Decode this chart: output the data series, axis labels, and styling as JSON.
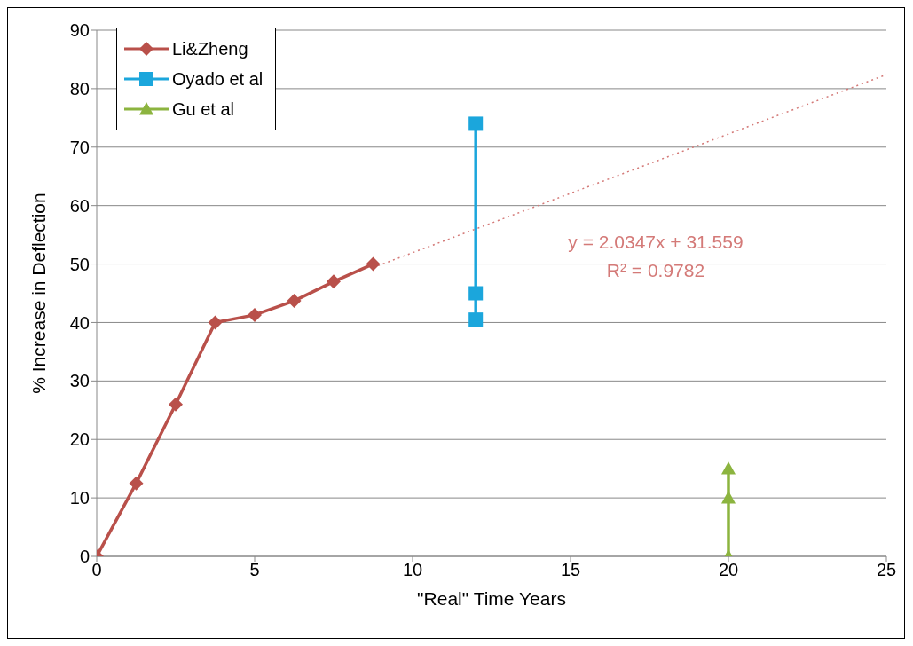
{
  "chart_data": {
    "type": "line",
    "xlabel": "\"Real\" Time Years",
    "ylabel": "% Increase in Deflection",
    "xlim": [
      0,
      25
    ],
    "xticks": [
      0,
      5,
      10,
      15,
      20,
      25
    ],
    "ylim": [
      0,
      90
    ],
    "yticks": [
      0,
      10,
      20,
      30,
      40,
      50,
      60,
      70,
      80,
      90
    ],
    "grid": "y",
    "legend": "top left",
    "series": [
      {
        "name": "Li&Zheng",
        "color": "#b9504a",
        "marker": "diamond",
        "x": [
          0,
          1.25,
          2.5,
          3.75,
          5,
          6.25,
          7.5,
          8.75
        ],
        "values": [
          0,
          12.5,
          26,
          40,
          41.3,
          43.7,
          47,
          50
        ]
      },
      {
        "name": "Oyado et al",
        "color": "#1ba6dc",
        "marker": "square",
        "x": [
          12,
          12,
          12
        ],
        "values": [
          74,
          45,
          40.5
        ]
      },
      {
        "name": "Gu et al",
        "color": "#8cb43f",
        "marker": "triangle",
        "x": [
          20,
          20,
          20
        ],
        "values": [
          15,
          10,
          0
        ]
      },
      {
        "color": "#d47a78",
        "marker": "none",
        "line_style": "dotted",
        "x": [
          8.75,
          25
        ],
        "values": [
          49.4,
          82.4
        ]
      }
    ],
    "annotations": [
      "y = 2.0347x + 31.559",
      "R² = 0.9782"
    ]
  }
}
